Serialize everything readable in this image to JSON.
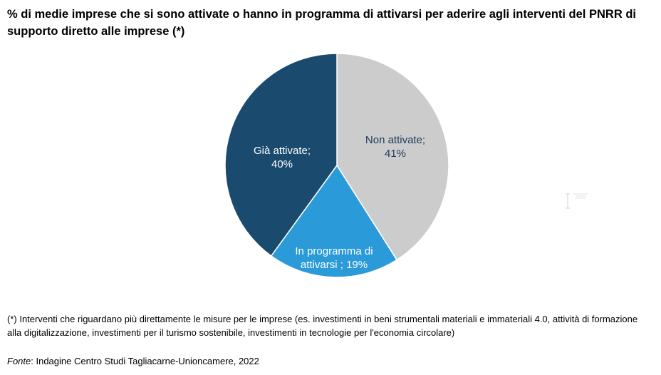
{
  "title": "% di medie imprese che si sono attivate o hanno in programma di attivarsi per aderire agli interventi del PNRR di supporto diretto alle imprese (*)",
  "chart_data": {
    "type": "pie",
    "title": "% di medie imprese che si sono attivate o hanno in programma di attivarsi per aderire agli interventi del PNRR di supporto diretto alle imprese (*)",
    "slices": [
      {
        "label_line1": "Non attivate;",
        "label_line2": "41%",
        "value": 41,
        "color": "#cccccc",
        "text_color": "#1f3a5a"
      },
      {
        "label_line1": "In programma di",
        "label_line2": "attivarsi ; 19%",
        "value": 19,
        "color": "#2b9ad8",
        "text_color": "#ffffff"
      },
      {
        "label_line1": "Già attivate;",
        "label_line2": "40%",
        "value": 40,
        "color": "#1a4a6e",
        "text_color": "#ffffff"
      }
    ],
    "start_angle_deg": 0,
    "direction": "clockwise",
    "legend": "none"
  },
  "footnote": "(*) Interventi che riguardano più direttamente le misure per le imprese (es. investimenti in beni strumentali materiali e immateriali 4.0, attività di formazione alla digitalizzazione, investimenti per il turismo sostenibile, investimenti in tecnologie per l'economia circolare)",
  "source_label": "Fonte",
  "source_text": ": Indagine Centro Studi Tagliacarne-Unioncamere, 2022"
}
